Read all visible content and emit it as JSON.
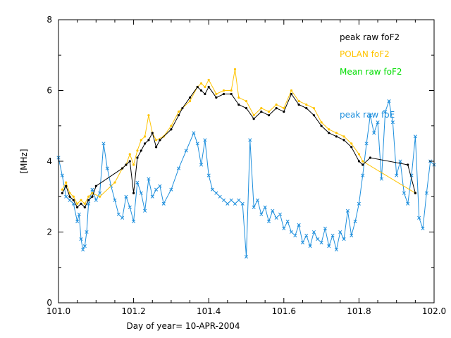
{
  "chart_data": {
    "type": "line",
    "title": "",
    "xlabel": "Day of year= 10-APR-2004",
    "ylabel": "[MHz]",
    "xlim": [
      101.0,
      102.0
    ],
    "ylim": [
      0,
      8
    ],
    "x_ticks": [
      "101.0",
      "101.2",
      "101.4",
      "101.6",
      "101.8",
      "102.0"
    ],
    "x_tick_values": [
      101.0,
      101.2,
      101.4,
      101.6,
      101.8,
      102.0
    ],
    "y_ticks": [
      "0",
      "2",
      "4",
      "6",
      "8"
    ],
    "y_tick_values": [
      0,
      2,
      4,
      6,
      8
    ],
    "series": [
      {
        "name": "peak raw foF2",
        "color": "#000000",
        "marker": "dot",
        "x": [
          101.01,
          101.02,
          101.03,
          101.04,
          101.05,
          101.06,
          101.07,
          101.08,
          101.09,
          101.1,
          101.17,
          101.18,
          101.19,
          101.2,
          101.21,
          101.22,
          101.23,
          101.24,
          101.25,
          101.26,
          101.27,
          101.3,
          101.32,
          101.33,
          101.35,
          101.37,
          101.38,
          101.39,
          101.4,
          101.42,
          101.44,
          101.46,
          101.48,
          101.5,
          101.52,
          101.54,
          101.56,
          101.58,
          101.6,
          101.62,
          101.64,
          101.66,
          101.68,
          101.7,
          101.72,
          101.74,
          101.76,
          101.78,
          101.8,
          101.81,
          101.83,
          101.93,
          101.95
        ],
        "y": [
          3.1,
          3.3,
          3.0,
          2.9,
          2.7,
          2.8,
          2.7,
          2.9,
          3.0,
          3.3,
          3.8,
          3.9,
          4.0,
          3.1,
          4.1,
          4.3,
          4.5,
          4.6,
          4.8,
          4.4,
          4.6,
          4.9,
          5.3,
          5.5,
          5.8,
          6.1,
          6.0,
          5.9,
          6.1,
          5.8,
          5.9,
          5.9,
          5.6,
          5.5,
          5.2,
          5.4,
          5.3,
          5.5,
          5.4,
          5.9,
          5.6,
          5.5,
          5.3,
          5.0,
          4.8,
          4.7,
          4.6,
          4.4,
          4.0,
          3.9,
          4.1,
          3.9,
          3.1
        ]
      },
      {
        "name": "POLAN foF2",
        "color": "#ffc400",
        "marker": "dot",
        "x": [
          101.01,
          101.02,
          101.03,
          101.04,
          101.05,
          101.06,
          101.07,
          101.08,
          101.09,
          101.11,
          101.15,
          101.17,
          101.18,
          101.19,
          101.2,
          101.21,
          101.22,
          101.23,
          101.24,
          101.25,
          101.26,
          101.28,
          101.3,
          101.32,
          101.35,
          101.37,
          101.38,
          101.39,
          101.4,
          101.42,
          101.44,
          101.46,
          101.47,
          101.48,
          101.5,
          101.52,
          101.54,
          101.56,
          101.58,
          101.6,
          101.62,
          101.64,
          101.66,
          101.68,
          101.7,
          101.72,
          101.74,
          101.76,
          101.78,
          101.8,
          101.81,
          101.95
        ],
        "y": [
          3.2,
          3.4,
          3.1,
          3.0,
          2.8,
          2.9,
          2.8,
          3.0,
          3.1,
          3.0,
          3.4,
          3.8,
          3.9,
          4.2,
          3.9,
          4.3,
          4.6,
          4.7,
          5.3,
          4.8,
          4.6,
          4.7,
          5.0,
          5.4,
          5.7,
          6.1,
          6.2,
          6.1,
          6.3,
          5.9,
          6.0,
          6.0,
          6.6,
          5.8,
          5.7,
          5.3,
          5.5,
          5.4,
          5.6,
          5.5,
          6.0,
          5.7,
          5.6,
          5.5,
          5.1,
          4.9,
          4.8,
          4.7,
          4.5,
          4.2,
          4.0,
          3.1
        ]
      },
      {
        "name": "Mean raw foF2",
        "color": "#00dd00",
        "marker": "none",
        "x": [],
        "y": []
      },
      {
        "name": "peak raw foE",
        "color": "#1e8fdd",
        "marker": "x",
        "x": [
          101.0,
          101.01,
          101.02,
          101.03,
          101.04,
          101.05,
          101.055,
          101.06,
          101.065,
          101.07,
          101.075,
          101.08,
          101.09,
          101.1,
          101.11,
          101.12,
          101.13,
          101.14,
          101.15,
          101.16,
          101.17,
          101.18,
          101.19,
          101.2,
          101.21,
          101.22,
          101.23,
          101.24,
          101.25,
          101.26,
          101.27,
          101.28,
          101.3,
          101.32,
          101.34,
          101.36,
          101.37,
          101.38,
          101.39,
          101.4,
          101.41,
          101.42,
          101.43,
          101.44,
          101.45,
          101.46,
          101.47,
          101.48,
          101.49,
          101.5,
          101.51,
          101.52,
          101.53,
          101.54,
          101.55,
          101.56,
          101.57,
          101.58,
          101.59,
          101.6,
          101.61,
          101.62,
          101.63,
          101.64,
          101.65,
          101.66,
          101.67,
          101.68,
          101.69,
          101.7,
          101.71,
          101.72,
          101.73,
          101.74,
          101.75,
          101.76,
          101.77,
          101.78,
          101.79,
          101.8,
          101.81,
          101.82,
          101.83,
          101.84,
          101.85,
          101.86,
          101.87,
          101.88,
          101.89,
          101.9,
          101.91,
          101.92,
          101.93,
          101.94,
          101.95,
          101.96,
          101.97,
          101.98,
          101.99,
          102.0
        ],
        "y": [
          4.1,
          3.6,
          3.0,
          2.9,
          2.8,
          2.3,
          2.5,
          1.8,
          1.5,
          1.6,
          2.0,
          2.8,
          3.2,
          2.9,
          3.1,
          4.5,
          3.8,
          3.3,
          2.9,
          2.5,
          2.4,
          3.0,
          2.7,
          2.3,
          3.4,
          3.1,
          2.6,
          3.5,
          3.0,
          3.2,
          3.3,
          2.8,
          3.2,
          3.8,
          4.3,
          4.8,
          4.5,
          3.9,
          4.6,
          3.6,
          3.2,
          3.1,
          3.0,
          2.9,
          2.8,
          2.9,
          2.8,
          2.9,
          2.8,
          1.3,
          4.6,
          2.7,
          2.9,
          2.5,
          2.7,
          2.3,
          2.6,
          2.4,
          2.5,
          2.1,
          2.3,
          2.0,
          1.9,
          2.2,
          1.7,
          1.9,
          1.6,
          2.0,
          1.8,
          1.7,
          2.1,
          1.6,
          1.9,
          1.5,
          2.0,
          1.8,
          2.6,
          1.9,
          2.3,
          2.8,
          3.6,
          4.5,
          5.3,
          4.8,
          5.1,
          3.5,
          5.4,
          5.7,
          5.1,
          3.6,
          4.0,
          3.1,
          2.8,
          3.6,
          4.7,
          2.4,
          2.1,
          3.1,
          4.0,
          3.9
        ]
      }
    ],
    "legend": [
      {
        "label": "peak raw foF2",
        "color": "#000000"
      },
      {
        "label": "POLAN foF2",
        "color": "#ffc400"
      },
      {
        "label": "Mean raw foF2",
        "color": "#00dd00"
      },
      {
        "label": "peak raw foE",
        "color": "#1e8fdd"
      }
    ],
    "legend_position": "top-right"
  }
}
